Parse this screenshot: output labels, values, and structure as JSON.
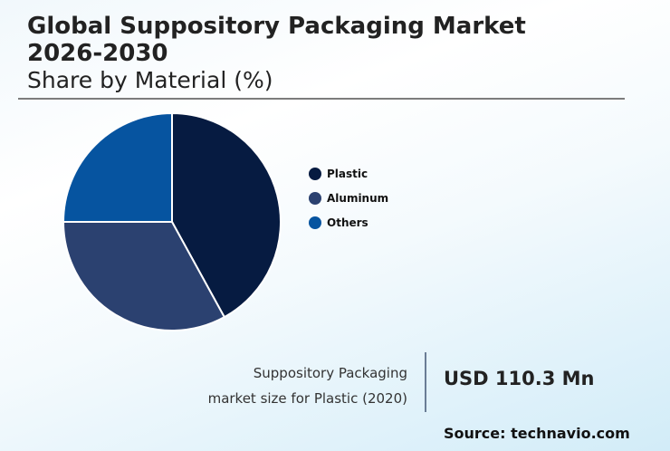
{
  "header": {
    "title_line1": "Global Suppository Packaging Market",
    "title_line2": "2026-2030",
    "subtitle": "Share by Material (%)"
  },
  "stat": {
    "label_line1": "Suppository Packaging",
    "label_line2": "market size for Plastic (2020)",
    "value": "USD 110.3 Mn"
  },
  "source": "Source: technavio.com",
  "legend": [
    {
      "label": "Plastic",
      "color": "#061b41"
    },
    {
      "label": "Aluminum",
      "color": "#2b4170"
    },
    {
      "label": "Others",
      "color": "#0654a0"
    }
  ],
  "chart_data": {
    "type": "pie",
    "title": "Global Suppository Packaging Market 2026-2030",
    "subtitle": "Share by Material (%)",
    "categories": [
      "Plastic",
      "Aluminum",
      "Others"
    ],
    "values": [
      42,
      33,
      25
    ],
    "colors": [
      "#061b41",
      "#2b4170",
      "#0654a0"
    ],
    "start_angle": "12 o'clock, clockwise",
    "legend_position": "right"
  }
}
